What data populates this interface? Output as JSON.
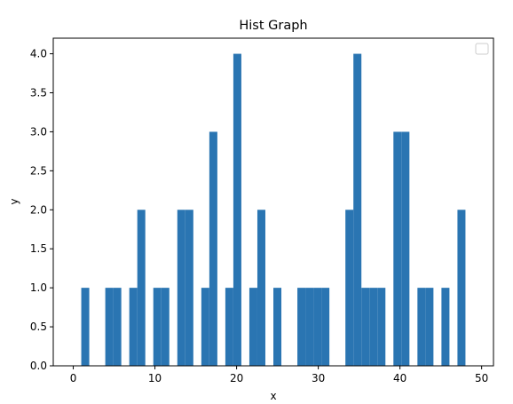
{
  "chart_data": {
    "type": "bar",
    "title": "Hist Graph",
    "xlabel": "x",
    "ylabel": "y",
    "xlim": [
      -2.45,
      51.45
    ],
    "ylim": [
      0,
      4.2
    ],
    "xticks": [
      0,
      10,
      20,
      30,
      40,
      50
    ],
    "xtick_labels": [
      "0",
      "10",
      "20",
      "30",
      "40",
      "50"
    ],
    "yticks": [
      0,
      0.5,
      1,
      1.5,
      2,
      2.5,
      3,
      3.5,
      4
    ],
    "ytick_labels": [
      "0.0",
      "0.5",
      "1.0",
      "1.5",
      "2.0",
      "2.5",
      "3.0",
      "3.5",
      "4.0"
    ],
    "grid": false,
    "legend": {
      "placement": "top-right",
      "entries": []
    },
    "bar_color": "#2a75b2",
    "bin_width": 0.98,
    "bins": [
      {
        "start": 0.98,
        "value": 1
      },
      {
        "start": 3.92,
        "value": 1
      },
      {
        "start": 4.9,
        "value": 1
      },
      {
        "start": 6.86,
        "value": 1
      },
      {
        "start": 7.84,
        "value": 2
      },
      {
        "start": 9.8,
        "value": 1
      },
      {
        "start": 10.78,
        "value": 1
      },
      {
        "start": 12.74,
        "value": 2
      },
      {
        "start": 13.72,
        "value": 2
      },
      {
        "start": 15.68,
        "value": 1
      },
      {
        "start": 16.66,
        "value": 3
      },
      {
        "start": 18.62,
        "value": 1
      },
      {
        "start": 19.6,
        "value": 4
      },
      {
        "start": 21.56,
        "value": 1
      },
      {
        "start": 22.54,
        "value": 2
      },
      {
        "start": 24.5,
        "value": 1
      },
      {
        "start": 27.44,
        "value": 1
      },
      {
        "start": 28.42,
        "value": 1
      },
      {
        "start": 29.4,
        "value": 1
      },
      {
        "start": 30.38,
        "value": 1
      },
      {
        "start": 33.32,
        "value": 2
      },
      {
        "start": 34.3,
        "value": 4
      },
      {
        "start": 35.28,
        "value": 1
      },
      {
        "start": 36.26,
        "value": 1
      },
      {
        "start": 37.24,
        "value": 1
      },
      {
        "start": 39.2,
        "value": 3
      },
      {
        "start": 40.18,
        "value": 3
      },
      {
        "start": 42.14,
        "value": 1
      },
      {
        "start": 43.12,
        "value": 1
      },
      {
        "start": 45.08,
        "value": 1
      },
      {
        "start": 47.04,
        "value": 2
      }
    ]
  }
}
